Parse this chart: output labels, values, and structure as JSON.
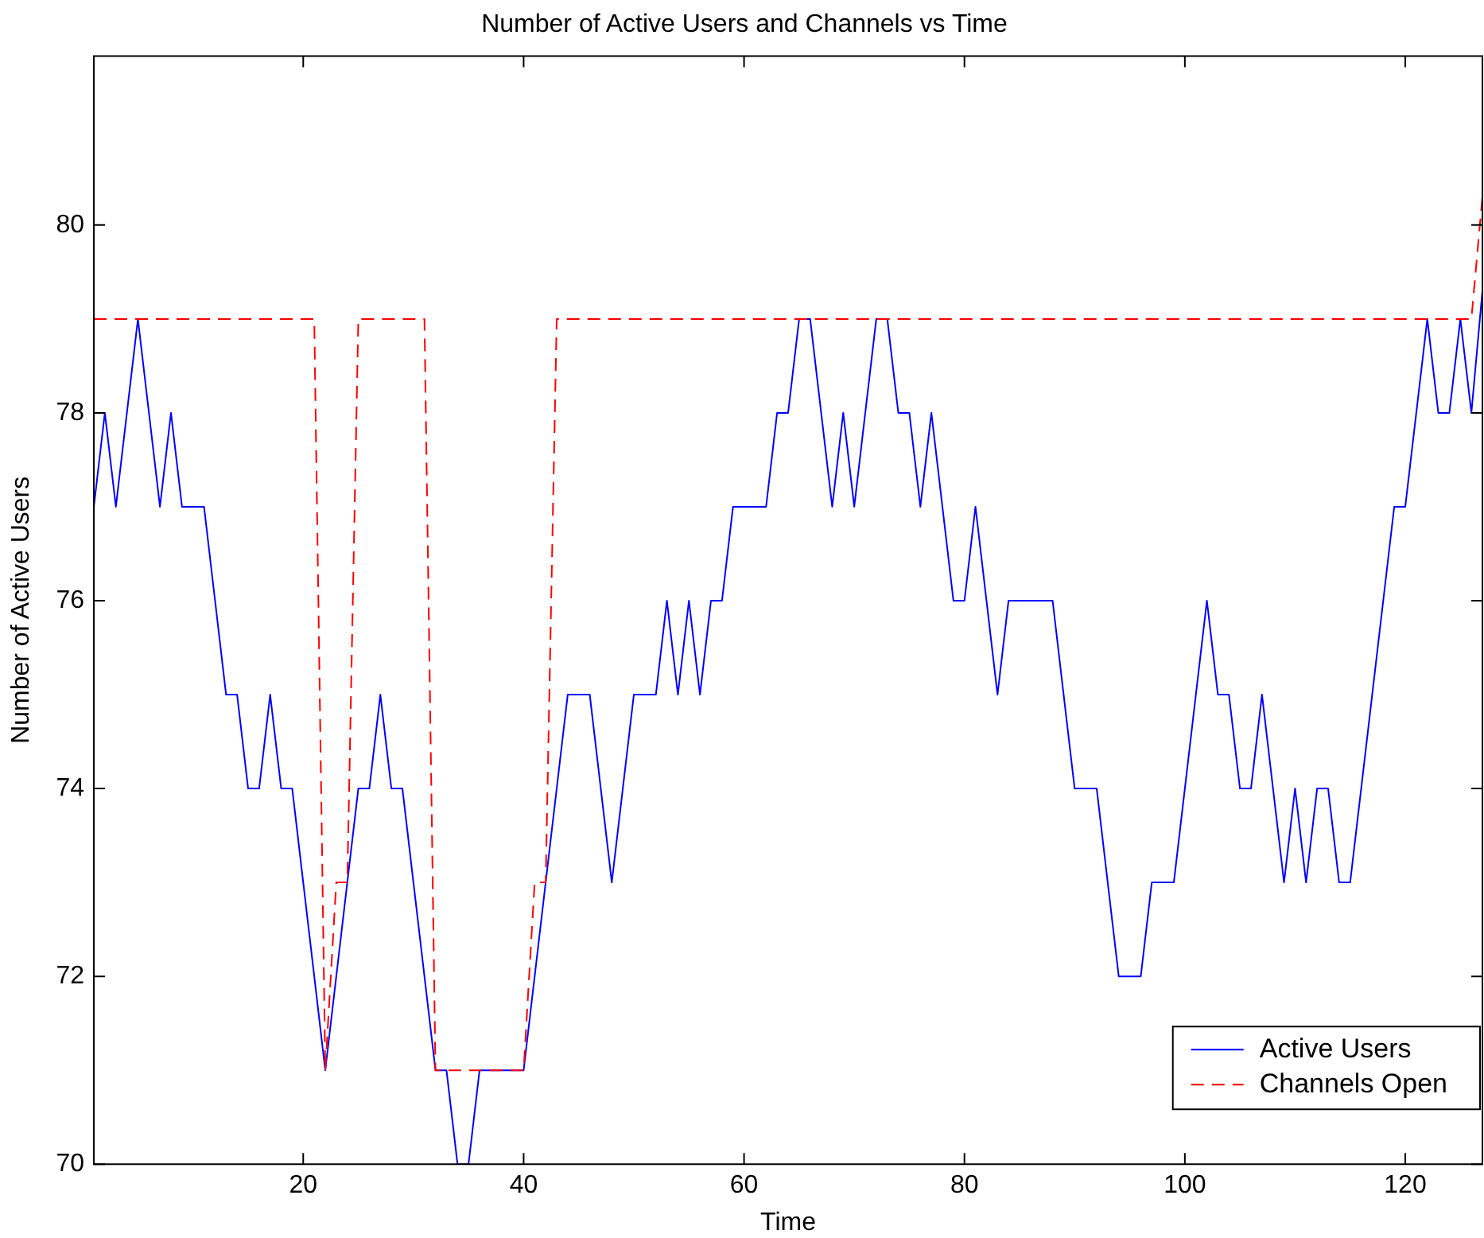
{
  "chart_data": {
    "type": "line",
    "title": "Number of Active Users and Channels vs Time",
    "xlabel": "Time",
    "ylabel": "Number of Active Users",
    "x": [
      1,
      2,
      3,
      4,
      5,
      6,
      7,
      8,
      9,
      10,
      11,
      12,
      13,
      14,
      15,
      16,
      17,
      18,
      19,
      20,
      21,
      22,
      23,
      24,
      25,
      26,
      27,
      28,
      29,
      30,
      31,
      32,
      33,
      34,
      35,
      36,
      37,
      38,
      39,
      40,
      41,
      42,
      43,
      44,
      45,
      46,
      47,
      48,
      49,
      50,
      51,
      52,
      53,
      54,
      55,
      56,
      57,
      58,
      59,
      60,
      61,
      62,
      63,
      64,
      65,
      66,
      67,
      68,
      69,
      70,
      71,
      72,
      73,
      74,
      75,
      76,
      77,
      78,
      79,
      80,
      81,
      82,
      83,
      84,
      85,
      86,
      87,
      88,
      89,
      90,
      91,
      92,
      93,
      94,
      95,
      96,
      97,
      98,
      99,
      100,
      101,
      102,
      103,
      104,
      105,
      106,
      107,
      108,
      109,
      110,
      111,
      112,
      113,
      114,
      115,
      116,
      117,
      118,
      119,
      120,
      121,
      122,
      123,
      124,
      125,
      126,
      127
    ],
    "series": [
      {
        "name": "Active Users",
        "color": "#0000ff",
        "line_style": "solid",
        "values": [
          77,
          78,
          77,
          78,
          79,
          78,
          77,
          78,
          77,
          77,
          77,
          76,
          75,
          75,
          74,
          74,
          75,
          74,
          74,
          73,
          72,
          71,
          72,
          73,
          74,
          74,
          75,
          74,
          74,
          73,
          72,
          71,
          71,
          70,
          70,
          71,
          71,
          71,
          71,
          71,
          72,
          73,
          74,
          75,
          75,
          75,
          74,
          73,
          74,
          75,
          75,
          75,
          76,
          75,
          76,
          75,
          76,
          76,
          77,
          77,
          77,
          77,
          78,
          78,
          79,
          79,
          78,
          77,
          78,
          77,
          78,
          79,
          79,
          78,
          78,
          77,
          78,
          77,
          76,
          76,
          77,
          76,
          75,
          76,
          76,
          76,
          76,
          76,
          75,
          74,
          74,
          74,
          73,
          72,
          72,
          72,
          73,
          73,
          73,
          74,
          75,
          76,
          75,
          75,
          74,
          74,
          75,
          74,
          73,
          74,
          73,
          74,
          74,
          73,
          73,
          74,
          75,
          76,
          77,
          77,
          78,
          79,
          78,
          78,
          79,
          78,
          79.3
        ]
      },
      {
        "name": "Channels Open",
        "color": "#ff0000",
        "line_style": "dashed",
        "values": [
          79,
          79,
          79,
          79,
          79,
          79,
          79,
          79,
          79,
          79,
          79,
          79,
          79,
          79,
          79,
          79,
          79,
          79,
          79,
          79,
          79,
          71,
          73,
          73,
          79,
          79,
          79,
          79,
          79,
          79,
          79,
          71,
          71,
          71,
          71,
          71,
          71,
          71,
          71,
          71,
          73,
          73,
          79,
          79,
          79,
          79,
          79,
          79,
          79,
          79,
          79,
          79,
          79,
          79,
          79,
          79,
          79,
          79,
          79,
          79,
          79,
          79,
          79,
          79,
          79,
          79,
          79,
          79,
          79,
          79,
          79,
          79,
          79,
          79,
          79,
          79,
          79,
          79,
          79,
          79,
          79,
          79,
          79,
          79,
          79,
          79,
          79,
          79,
          79,
          79,
          79,
          79,
          79,
          79,
          79,
          79,
          79,
          79,
          79,
          79,
          79,
          79,
          79,
          79,
          79,
          79,
          79,
          79,
          79,
          79,
          79,
          79,
          79,
          79,
          79,
          79,
          79,
          79,
          79,
          79,
          79,
          79,
          79,
          79,
          79,
          79,
          80.3
        ]
      }
    ],
    "xlim": [
      1,
      127
    ],
    "xticks": [
      20,
      40,
      60,
      80,
      100,
      120
    ],
    "ylim": [
      70,
      81.8
    ],
    "yticks": [
      70,
      72,
      74,
      76,
      78,
      80
    ],
    "grid": false,
    "legend": "bottom right",
    "marker": "none"
  }
}
